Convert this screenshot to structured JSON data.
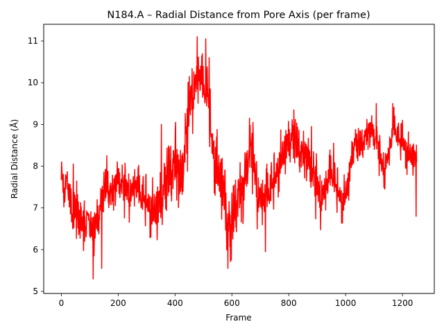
{
  "chart_data": {
    "type": "line",
    "title": "N184.A – Radial Distance from Pore Axis (per frame)",
    "xlabel": "Frame",
    "ylabel": "Radial Distance (Å)",
    "xlim": [
      -62,
      1312
    ],
    "ylim": [
      4.95,
      11.4
    ],
    "xticks": [
      0,
      200,
      400,
      600,
      800,
      1000,
      1200
    ],
    "yticks": [
      5,
      6,
      7,
      8,
      9,
      10,
      11
    ],
    "xtick_labels": [
      "0",
      "200",
      "400",
      "600",
      "800",
      "1000",
      "1200"
    ],
    "ytick_labels": [
      "5",
      "6",
      "7",
      "8",
      "9",
      "10",
      "11"
    ],
    "grid": false,
    "legend": "none",
    "series": [
      {
        "color": "#ff0000",
        "x_start": 0,
        "x_end": 1250,
        "anchors": [
          [
            0,
            7.8
          ],
          [
            10,
            7.2
          ],
          [
            20,
            7.6
          ],
          [
            30,
            7.3
          ],
          [
            40,
            6.9
          ],
          [
            55,
            7.1
          ],
          [
            70,
            6.5
          ],
          [
            85,
            6.4
          ],
          [
            100,
            6.6
          ],
          [
            115,
            6.3
          ],
          [
            130,
            6.7
          ],
          [
            145,
            7.2
          ],
          [
            160,
            7.5
          ],
          [
            180,
            7.3
          ],
          [
            200,
            7.6
          ],
          [
            220,
            7.4
          ],
          [
            240,
            7.3
          ],
          [
            260,
            7.5
          ],
          [
            280,
            7.2
          ],
          [
            300,
            7.0
          ],
          [
            320,
            6.9
          ],
          [
            340,
            6.8
          ],
          [
            360,
            7.3
          ],
          [
            380,
            7.7
          ],
          [
            400,
            8.1
          ],
          [
            420,
            7.4
          ],
          [
            440,
            8.6
          ],
          [
            455,
            9.5
          ],
          [
            470,
            9.9
          ],
          [
            485,
            10.1
          ],
          [
            500,
            9.8
          ],
          [
            515,
            9.6
          ],
          [
            530,
            8.4
          ],
          [
            550,
            7.8
          ],
          [
            565,
            7.4
          ],
          [
            580,
            6.7
          ],
          [
            595,
            6.2
          ],
          [
            610,
            6.9
          ],
          [
            625,
            7.4
          ],
          [
            640,
            7.2
          ],
          [
            655,
            8.0
          ],
          [
            670,
            8.3
          ],
          [
            690,
            7.3
          ],
          [
            710,
            7.1
          ],
          [
            730,
            7.3
          ],
          [
            750,
            7.5
          ],
          [
            770,
            8.1
          ],
          [
            790,
            8.3
          ],
          [
            810,
            8.6
          ],
          [
            830,
            8.4
          ],
          [
            850,
            8.3
          ],
          [
            870,
            8.0
          ],
          [
            890,
            7.6
          ],
          [
            910,
            7.2
          ],
          [
            930,
            7.4
          ],
          [
            950,
            7.8
          ],
          [
            970,
            7.3
          ],
          [
            990,
            7.1
          ],
          [
            1010,
            7.5
          ],
          [
            1030,
            8.5
          ],
          [
            1050,
            8.4
          ],
          [
            1070,
            8.7
          ],
          [
            1090,
            8.8
          ],
          [
            1110,
            8.5
          ],
          [
            1130,
            7.9
          ],
          [
            1150,
            8.2
          ],
          [
            1170,
            8.9
          ],
          [
            1190,
            8.5
          ],
          [
            1210,
            8.4
          ],
          [
            1230,
            8.2
          ],
          [
            1250,
            8.0
          ]
        ],
        "noise": [
          [
            0,
            0.3
          ],
          [
            60,
            0.55
          ],
          [
            140,
            0.4
          ],
          [
            300,
            0.5
          ],
          [
            420,
            0.75
          ],
          [
            500,
            0.55
          ],
          [
            560,
            0.7
          ],
          [
            700,
            0.6
          ],
          [
            800,
            0.45
          ],
          [
            900,
            0.55
          ],
          [
            1020,
            0.35
          ],
          [
            1100,
            0.35
          ],
          [
            1250,
            0.35
          ]
        ],
        "extremes": [
          [
            42,
            8.05
          ],
          [
            112,
            5.3
          ],
          [
            142,
            5.55
          ],
          [
            160,
            8.25
          ],
          [
            352,
            9.0
          ],
          [
            402,
            9.05
          ],
          [
            450,
            10.15
          ],
          [
            478,
            11.1
          ],
          [
            508,
            11.05
          ],
          [
            520,
            10.6
          ],
          [
            546,
            8.7
          ],
          [
            576,
            7.9
          ],
          [
            586,
            5.55
          ],
          [
            662,
            9.15
          ],
          [
            718,
            5.95
          ],
          [
            818,
            9.35
          ],
          [
            880,
            8.95
          ],
          [
            958,
            8.55
          ],
          [
            1072,
            8.9
          ],
          [
            1108,
            9.5
          ],
          [
            1138,
            7.45
          ],
          [
            1166,
            9.5
          ],
          [
            1200,
            9.1
          ],
          [
            1216,
            7.8
          ],
          [
            1248,
            6.8
          ]
        ],
        "seed": 184
      }
    ]
  }
}
